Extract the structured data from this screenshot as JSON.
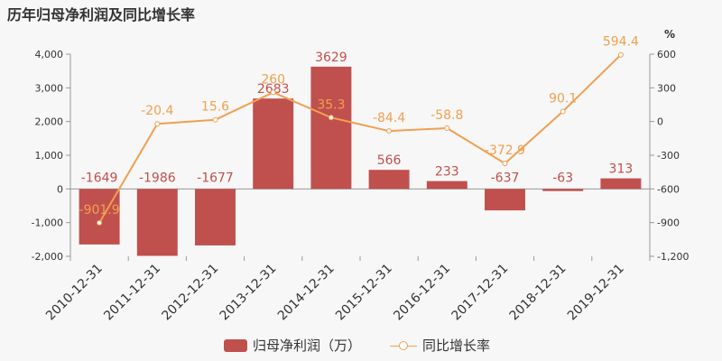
{
  "title": "历年归母净利润及同比增长率",
  "chart_data": {
    "type": "bar+line",
    "categories": [
      "2010-12-31",
      "2011-12-31",
      "2012-12-31",
      "2013-12-31",
      "2014-12-31",
      "2015-12-31",
      "2016-12-31",
      "2017-12-31",
      "2018-12-31",
      "2019-12-31"
    ],
    "series": [
      {
        "name": "归母净利润（万）",
        "type": "bar",
        "axis": "left",
        "color": "#c0504d",
        "values": [
          -1649,
          -1986,
          -1677,
          2683,
          3629,
          566,
          233,
          -637,
          -63,
          313
        ]
      },
      {
        "name": "同比增长率",
        "type": "line",
        "axis": "right",
        "color": "#f0a050",
        "values": [
          -901.9,
          -20.4,
          15.6,
          260,
          35.3,
          -84.4,
          -58.8,
          -372.9,
          90.1,
          594.4
        ]
      }
    ],
    "left_axis": {
      "ylim": [
        -2000,
        4000
      ],
      "ticks": [
        "-2,000",
        "-1,000",
        "0",
        "1,000",
        "2,000",
        "3,000",
        "4,000"
      ]
    },
    "right_axis": {
      "ylim": [
        -1200,
        600
      ],
      "unit": "%",
      "ticks": [
        "-1,200",
        "-900",
        "-600",
        "-300",
        "0",
        "300",
        "600"
      ]
    },
    "legend_position": "bottom-center"
  }
}
